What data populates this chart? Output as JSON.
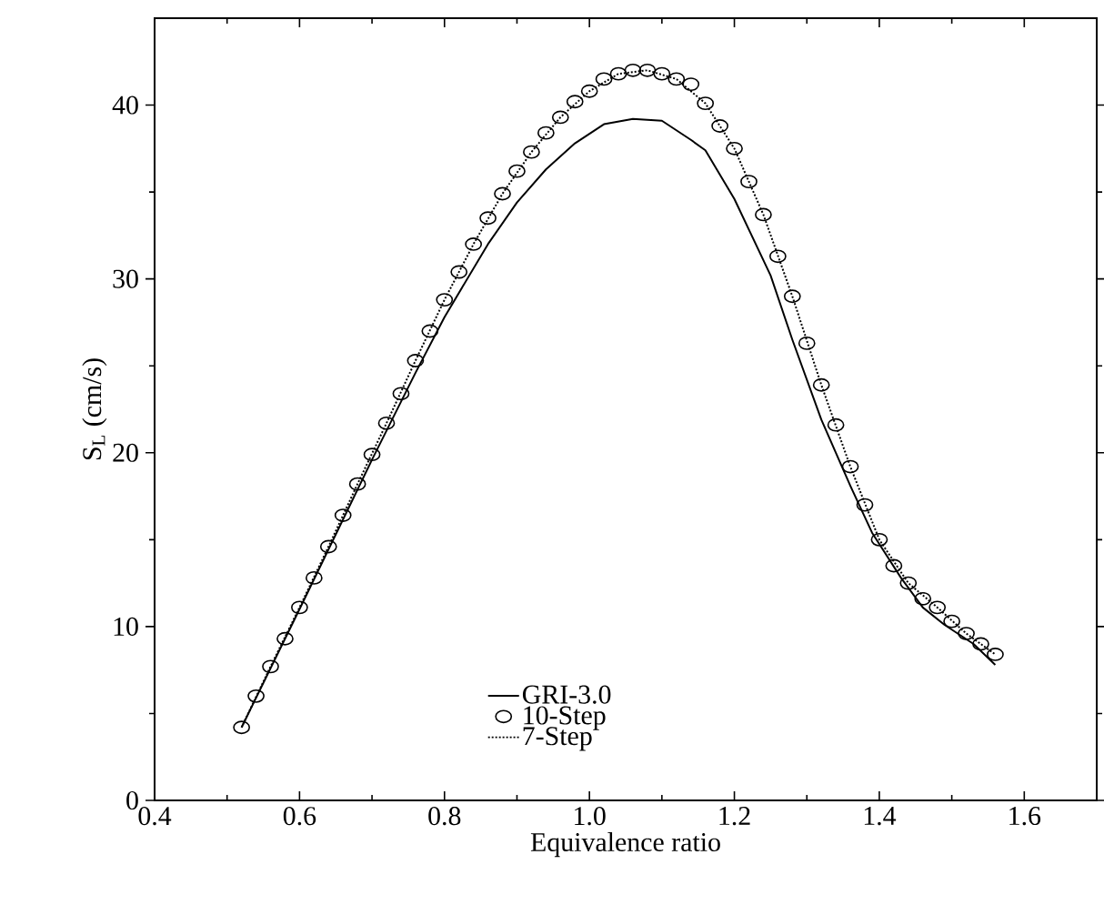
{
  "chart_data": {
    "type": "line",
    "xlabel": "Equivalence ratio",
    "ylabel": "S$_{L}$ (cm/s)",
    "xlim": [
      0.4,
      1.7
    ],
    "xticks": [
      {
        "value": 0.4,
        "label": "0.4"
      },
      {
        "value": 0.6,
        "label": "0.6"
      },
      {
        "value": 0.8,
        "label": "0.8"
      },
      {
        "value": 1.0,
        "label": "1.0"
      },
      {
        "value": 1.2,
        "label": "1.2"
      },
      {
        "value": 1.4,
        "label": "1.4"
      },
      {
        "value": 1.6,
        "label": "1.6"
      }
    ],
    "ylim": [
      0,
      45
    ],
    "yticks": [
      0,
      10,
      20,
      30,
      40
    ],
    "legend": "bottom",
    "series": [
      {
        "name": "GRI-3.0",
        "type": "line",
        "line_style": "solid",
        "color": "#000000",
        "x": [
          0.52,
          0.6,
          0.7,
          0.76,
          0.8,
          0.86,
          0.9,
          0.94,
          0.98,
          1.02,
          1.06,
          1.1,
          1.14,
          1.16,
          1.2,
          1.25,
          1.28,
          1.32,
          1.36,
          1.39,
          1.43,
          1.46,
          1.49,
          1.53,
          1.56
        ],
        "values": [
          4.2,
          11.0,
          19.6,
          24.6,
          27.8,
          32.0,
          34.4,
          36.3,
          37.8,
          38.9,
          39.2,
          39.1,
          38.0,
          37.4,
          34.6,
          30.2,
          26.5,
          21.9,
          18.1,
          15.4,
          12.8,
          11.1,
          10.1,
          9.0,
          7.8
        ]
      },
      {
        "name": "10-Step",
        "type": "scatter",
        "marker": "circle",
        "color": "#000000",
        "x": [
          0.52,
          0.54,
          0.56,
          0.58,
          0.6,
          0.62,
          0.64,
          0.66,
          0.68,
          0.7,
          0.72,
          0.74,
          0.76,
          0.78,
          0.8,
          0.82,
          0.84,
          0.86,
          0.88,
          0.9,
          0.92,
          0.94,
          0.96,
          0.98,
          1.0,
          1.02,
          1.04,
          1.06,
          1.08,
          1.1,
          1.12,
          1.14,
          1.16,
          1.18,
          1.2,
          1.22,
          1.24,
          1.26,
          1.28,
          1.3,
          1.32,
          1.34,
          1.36,
          1.38,
          1.4,
          1.42,
          1.44,
          1.46,
          1.48,
          1.5,
          1.52,
          1.54,
          1.56
        ],
        "values": [
          4.2,
          6.0,
          7.7,
          9.3,
          11.1,
          12.8,
          14.6,
          16.4,
          18.2,
          19.9,
          21.7,
          23.4,
          25.3,
          27.0,
          28.8,
          30.4,
          32.0,
          33.5,
          34.9,
          36.2,
          37.3,
          38.4,
          39.3,
          40.2,
          40.8,
          41.5,
          41.8,
          42.0,
          42.0,
          41.8,
          41.5,
          41.2,
          40.1,
          38.8,
          37.5,
          35.6,
          33.7,
          31.3,
          29.0,
          26.3,
          23.9,
          21.6,
          19.2,
          17.0,
          15.0,
          13.5,
          12.5,
          11.6,
          11.1,
          10.3,
          9.6,
          9.0,
          8.4
        ]
      },
      {
        "name": "7-Step",
        "type": "line",
        "line_style": "dotted",
        "color": "#000000",
        "x": [
          0.52,
          0.56,
          0.6,
          0.64,
          0.68,
          0.72,
          0.76,
          0.8,
          0.84,
          0.88,
          0.92,
          0.96,
          1.0,
          1.04,
          1.08,
          1.12,
          1.16,
          1.2,
          1.24,
          1.28,
          1.32,
          1.36,
          1.4,
          1.44,
          1.48,
          1.52,
          1.56
        ],
        "values": [
          4.2,
          7.7,
          11.1,
          14.6,
          18.2,
          21.7,
          25.3,
          28.8,
          32.0,
          34.9,
          37.3,
          39.3,
          40.8,
          41.8,
          42.0,
          41.5,
          40.1,
          37.5,
          33.7,
          29.0,
          23.9,
          19.2,
          15.0,
          12.5,
          11.1,
          9.6,
          8.4
        ]
      }
    ]
  }
}
